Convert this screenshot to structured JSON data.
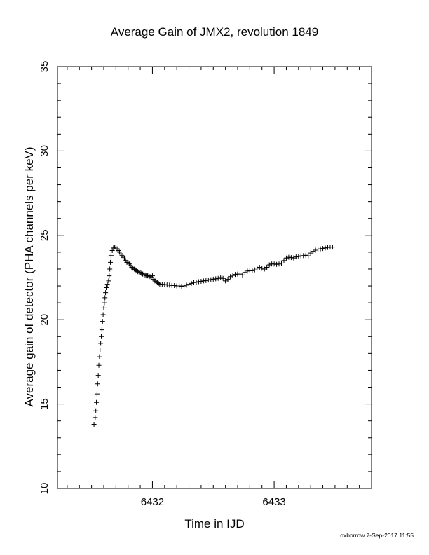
{
  "chart_data": {
    "type": "scatter",
    "title": "Average Gain of JMX2, revolution 1849",
    "xlabel": "Time in IJD",
    "ylabel": "Average gain of detector (PHA channels per keV)",
    "xlim": [
      6431.22,
      6433.8
    ],
    "ylim": [
      10,
      35
    ],
    "x_tick_labels": [
      "6432",
      "6433"
    ],
    "x_ticks": [
      6432,
      6433
    ],
    "y_ticks": [
      10,
      15,
      20,
      25,
      30,
      35
    ],
    "y_tick_labels": [
      "10",
      "15",
      "20",
      "25",
      "30",
      "35"
    ],
    "marker": "plus",
    "grid": false,
    "series": [
      {
        "color": "#000000",
        "points": [
          [
            6431.52,
            13.8
          ],
          [
            6431.53,
            14.2
          ],
          [
            6431.535,
            14.6
          ],
          [
            6431.54,
            15.1
          ],
          [
            6431.545,
            15.6
          ],
          [
            6431.55,
            16.2
          ],
          [
            6431.555,
            16.7
          ],
          [
            6431.56,
            17.3
          ],
          [
            6431.565,
            17.8
          ],
          [
            6431.57,
            18.2
          ],
          [
            6431.575,
            18.6
          ],
          [
            6431.58,
            19.0
          ],
          [
            6431.585,
            19.4
          ],
          [
            6431.59,
            19.9
          ],
          [
            6431.595,
            20.3
          ],
          [
            6431.6,
            20.7
          ],
          [
            6431.605,
            21.0
          ],
          [
            6431.61,
            21.3
          ],
          [
            6431.615,
            21.6
          ],
          [
            6431.62,
            21.9
          ],
          [
            6431.63,
            22.1
          ],
          [
            6431.64,
            22.3
          ],
          [
            6431.645,
            22.6
          ],
          [
            6431.65,
            23.0
          ],
          [
            6431.655,
            23.4
          ],
          [
            6431.66,
            23.8
          ],
          [
            6431.67,
            24.1
          ],
          [
            6431.68,
            24.25
          ],
          [
            6431.69,
            24.3
          ],
          [
            6431.7,
            24.3
          ],
          [
            6431.71,
            24.2
          ],
          [
            6431.72,
            24.1
          ],
          [
            6431.73,
            24.0
          ],
          [
            6431.74,
            23.9
          ],
          [
            6431.75,
            23.8
          ],
          [
            6431.76,
            23.7
          ],
          [
            6431.77,
            23.6
          ],
          [
            6431.78,
            23.5
          ],
          [
            6431.79,
            23.4
          ],
          [
            6431.8,
            23.4
          ],
          [
            6431.81,
            23.3
          ],
          [
            6431.82,
            23.2
          ],
          [
            6431.83,
            23.1
          ],
          [
            6431.84,
            23.05
          ],
          [
            6431.85,
            23.0
          ],
          [
            6431.86,
            22.95
          ],
          [
            6431.87,
            22.9
          ],
          [
            6431.88,
            22.85
          ],
          [
            6431.89,
            22.8
          ],
          [
            6431.9,
            22.8
          ],
          [
            6431.91,
            22.75
          ],
          [
            6431.92,
            22.7
          ],
          [
            6431.93,
            22.7
          ],
          [
            6431.94,
            22.65
          ],
          [
            6431.95,
            22.6
          ],
          [
            6431.96,
            22.6
          ],
          [
            6431.97,
            22.6
          ],
          [
            6431.98,
            22.55
          ],
          [
            6431.99,
            22.5
          ],
          [
            6432.0,
            22.6
          ],
          [
            6432.01,
            22.4
          ],
          [
            6432.02,
            22.3
          ],
          [
            6432.03,
            22.25
          ],
          [
            6432.04,
            22.2
          ],
          [
            6432.05,
            22.15
          ],
          [
            6432.06,
            22.1
          ],
          [
            6432.08,
            22.1
          ],
          [
            6432.1,
            22.08
          ],
          [
            6432.12,
            22.06
          ],
          [
            6432.14,
            22.05
          ],
          [
            6432.16,
            22.03
          ],
          [
            6432.18,
            22.02
          ],
          [
            6432.2,
            22.0
          ],
          [
            6432.22,
            22.0
          ],
          [
            6432.24,
            21.98
          ],
          [
            6432.26,
            22.0
          ],
          [
            6432.28,
            22.05
          ],
          [
            6432.3,
            22.1
          ],
          [
            6432.32,
            22.15
          ],
          [
            6432.34,
            22.2
          ],
          [
            6432.36,
            22.22
          ],
          [
            6432.38,
            22.25
          ],
          [
            6432.4,
            22.27
          ],
          [
            6432.42,
            22.3
          ],
          [
            6432.44,
            22.32
          ],
          [
            6432.46,
            22.35
          ],
          [
            6432.48,
            22.37
          ],
          [
            6432.5,
            22.4
          ],
          [
            6432.52,
            22.42
          ],
          [
            6432.54,
            22.45
          ],
          [
            6432.56,
            22.5
          ],
          [
            6432.58,
            22.45
          ],
          [
            6432.6,
            22.3
          ],
          [
            6432.62,
            22.4
          ],
          [
            6432.64,
            22.55
          ],
          [
            6432.66,
            22.62
          ],
          [
            6432.68,
            22.68
          ],
          [
            6432.7,
            22.7
          ],
          [
            6432.72,
            22.7
          ],
          [
            6432.74,
            22.65
          ],
          [
            6432.76,
            22.8
          ],
          [
            6432.78,
            22.88
          ],
          [
            6432.8,
            22.9
          ],
          [
            6432.82,
            22.9
          ],
          [
            6432.84,
            22.95
          ],
          [
            6432.86,
            23.05
          ],
          [
            6432.88,
            23.1
          ],
          [
            6432.9,
            23.05
          ],
          [
            6432.92,
            23.0
          ],
          [
            6432.94,
            23.1
          ],
          [
            6432.96,
            23.25
          ],
          [
            6432.98,
            23.3
          ],
          [
            6433.0,
            23.3
          ],
          [
            6433.02,
            23.28
          ],
          [
            6433.04,
            23.3
          ],
          [
            6433.06,
            23.35
          ],
          [
            6433.08,
            23.5
          ],
          [
            6433.1,
            23.65
          ],
          [
            6433.12,
            23.7
          ],
          [
            6433.14,
            23.68
          ],
          [
            6433.16,
            23.66
          ],
          [
            6433.18,
            23.72
          ],
          [
            6433.2,
            23.75
          ],
          [
            6433.22,
            23.78
          ],
          [
            6433.24,
            23.8
          ],
          [
            6433.26,
            23.82
          ],
          [
            6433.28,
            23.78
          ],
          [
            6433.3,
            23.95
          ],
          [
            6433.32,
            24.05
          ],
          [
            6433.34,
            24.12
          ],
          [
            6433.36,
            24.18
          ],
          [
            6433.38,
            24.2
          ],
          [
            6433.4,
            24.22
          ],
          [
            6433.42,
            24.25
          ],
          [
            6433.44,
            24.28
          ],
          [
            6433.46,
            24.3
          ],
          [
            6433.48,
            24.3
          ]
        ]
      }
    ]
  },
  "footer": {
    "credit": "oxborrow  7-Sep-2017 11:55"
  }
}
